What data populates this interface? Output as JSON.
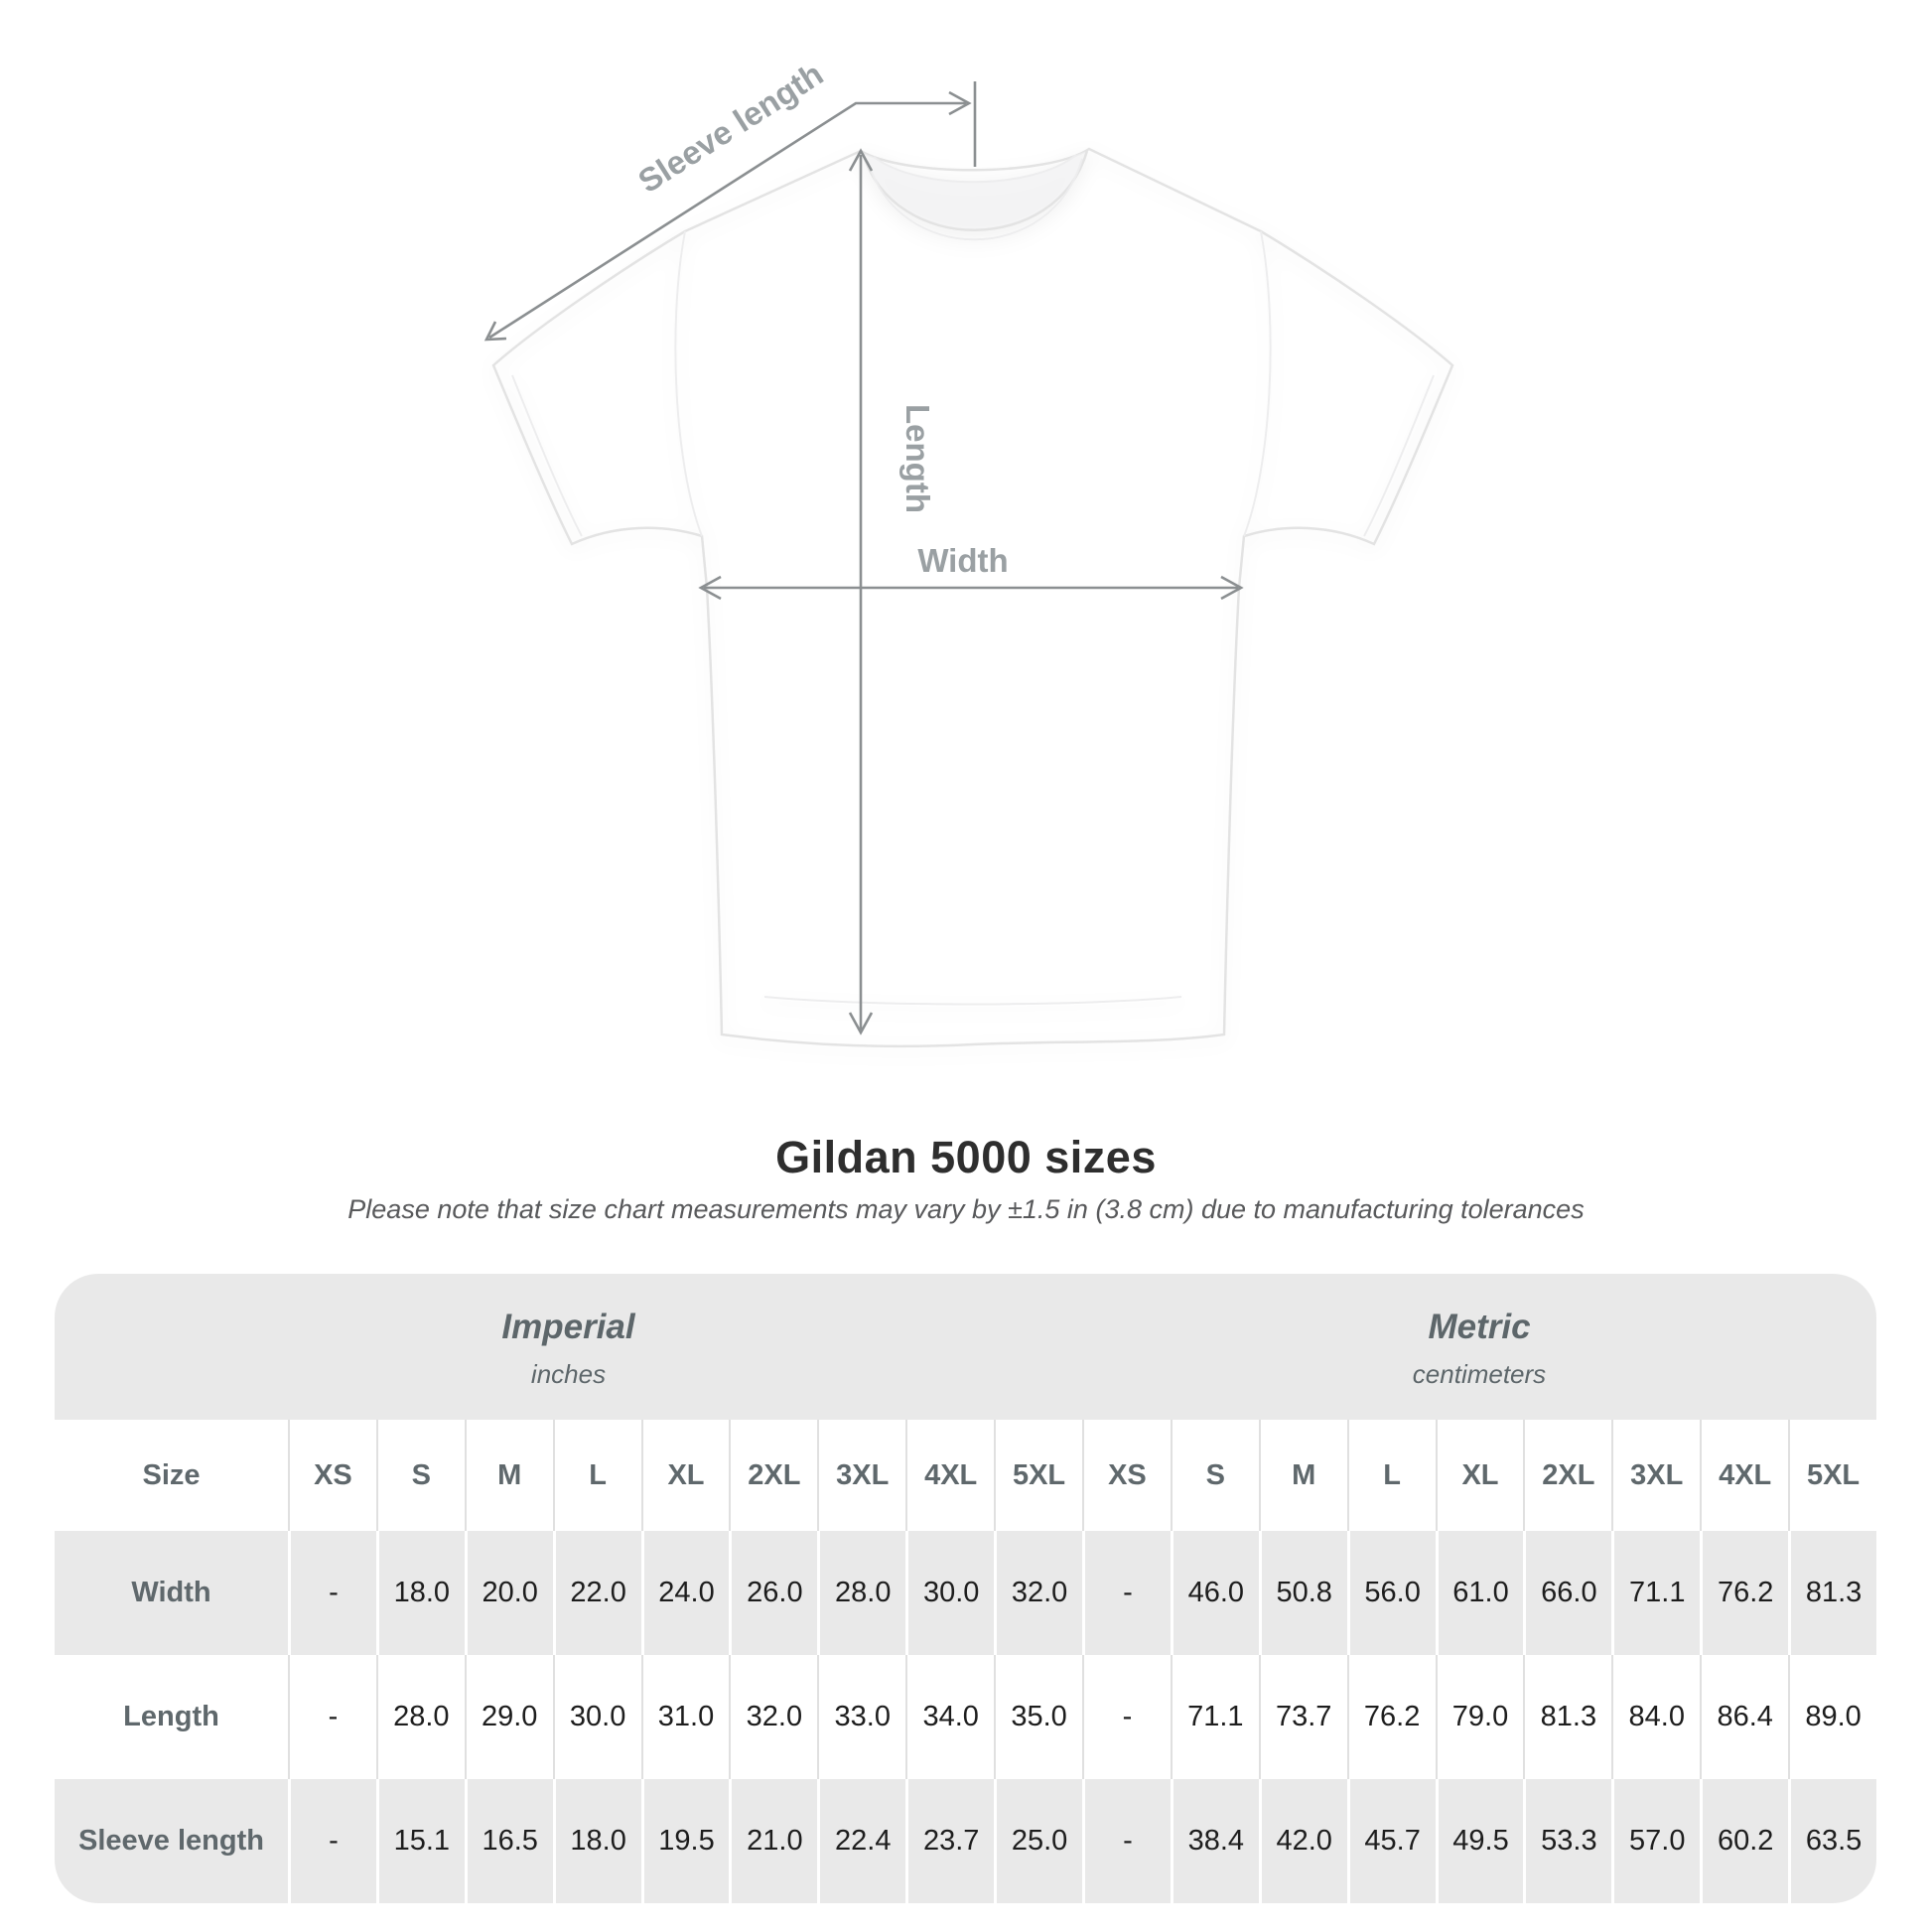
{
  "page": {
    "background": "#ffffff"
  },
  "diagram": {
    "labels": {
      "sleeve_length": "Sleeve length",
      "length": "Length",
      "width": "Width"
    },
    "line_color": "#8b8f91",
    "label_color": "#9aa0a3"
  },
  "header": {
    "title": "Gildan 5000 sizes",
    "subtitle": "Please note that size chart measurements may vary by ±1.5 in (3.8 cm) due to manufacturing tolerances"
  },
  "table": {
    "background": "#e9e9e9",
    "header_text_color": "#5f686c",
    "value_text_color": "#1d1d1d",
    "groups": [
      {
        "label": "Imperial",
        "sublabel": "inches"
      },
      {
        "label": "Metric",
        "sublabel": "centimeters"
      }
    ],
    "size_header": "Size",
    "sizes": [
      "XS",
      "S",
      "M",
      "L",
      "XL",
      "2XL",
      "3XL",
      "4XL",
      "5XL"
    ],
    "rows": [
      {
        "label": "Width",
        "imperial": [
          "-",
          "18.0",
          "20.0",
          "22.0",
          "24.0",
          "26.0",
          "28.0",
          "30.0",
          "32.0"
        ],
        "metric": [
          "-",
          "46.0",
          "50.8",
          "56.0",
          "61.0",
          "66.0",
          "71.1",
          "76.2",
          "81.3"
        ]
      },
      {
        "label": "Length",
        "imperial": [
          "-",
          "28.0",
          "29.0",
          "30.0",
          "31.0",
          "32.0",
          "33.0",
          "34.0",
          "35.0"
        ],
        "metric": [
          "-",
          "71.1",
          "73.7",
          "76.2",
          "79.0",
          "81.3",
          "84.0",
          "86.4",
          "89.0"
        ]
      },
      {
        "label": "Sleeve length",
        "imperial": [
          "-",
          "15.1",
          "16.5",
          "18.0",
          "19.5",
          "21.0",
          "22.4",
          "23.7",
          "25.0"
        ],
        "metric": [
          "-",
          "38.4",
          "42.0",
          "45.7",
          "49.5",
          "53.3",
          "57.0",
          "60.2",
          "63.5"
        ]
      }
    ]
  },
  "chart_data": {
    "type": "table",
    "title": "Gildan 5000 sizes",
    "note": "Please note that size chart measurements may vary by ±1.5 in (3.8 cm) due to manufacturing tolerances",
    "unit_groups": [
      {
        "name": "Imperial",
        "unit": "inches"
      },
      {
        "name": "Metric",
        "unit": "centimeters"
      }
    ],
    "columns": [
      "XS",
      "S",
      "M",
      "L",
      "XL",
      "2XL",
      "3XL",
      "4XL",
      "5XL"
    ],
    "measurements": [
      {
        "name": "Width",
        "imperial_in": [
          null,
          18.0,
          20.0,
          22.0,
          24.0,
          26.0,
          28.0,
          30.0,
          32.0
        ],
        "metric_cm": [
          null,
          46.0,
          50.8,
          56.0,
          61.0,
          66.0,
          71.1,
          76.2,
          81.3
        ]
      },
      {
        "name": "Length",
        "imperial_in": [
          null,
          28.0,
          29.0,
          30.0,
          31.0,
          32.0,
          33.0,
          34.0,
          35.0
        ],
        "metric_cm": [
          null,
          71.1,
          73.7,
          76.2,
          79.0,
          81.3,
          84.0,
          86.4,
          89.0
        ]
      },
      {
        "name": "Sleeve length",
        "imperial_in": [
          null,
          15.1,
          16.5,
          18.0,
          19.5,
          21.0,
          22.4,
          23.7,
          25.0
        ],
        "metric_cm": [
          null,
          38.4,
          42.0,
          45.7,
          49.5,
          53.3,
          57.0,
          60.2,
          63.5
        ]
      }
    ]
  }
}
